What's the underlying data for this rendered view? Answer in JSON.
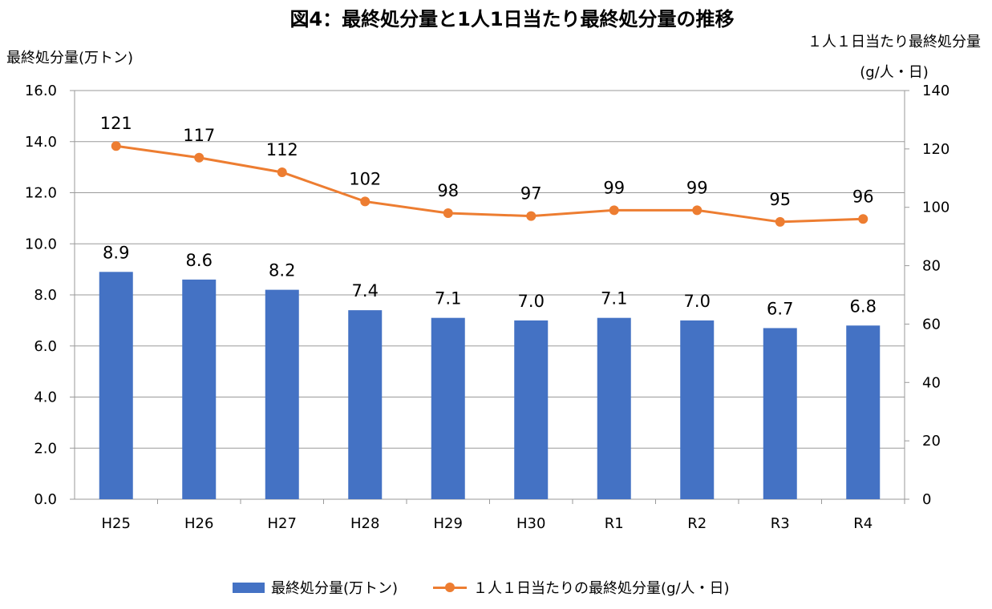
{
  "chart_data": {
    "type": "bar+line",
    "title": "図4：最終処分量と1人1日当たり最終処分量の推移",
    "categories": [
      "H25",
      "H26",
      "H27",
      "H28",
      "H29",
      "H30",
      "R1",
      "R2",
      "R3",
      "R4"
    ],
    "series": [
      {
        "name": "最終処分量(万トン)",
        "type": "bar",
        "axis": "left",
        "color": "#4472C4",
        "values": [
          8.9,
          8.6,
          8.2,
          7.4,
          7.1,
          7.0,
          7.1,
          7.0,
          6.7,
          6.8
        ],
        "labels": [
          "8.9",
          "8.6",
          "8.2",
          "7.4",
          "7.1",
          "7.0",
          "7.1",
          "7.0",
          "6.7",
          "6.8"
        ]
      },
      {
        "name": "１人１日当たりの最終処分量(g/人・日)",
        "type": "line",
        "axis": "right",
        "color": "#ED7D31",
        "values": [
          121,
          117,
          112,
          102,
          98,
          97,
          99,
          99,
          95,
          96
        ],
        "labels": [
          "121",
          "117",
          "112",
          "102",
          "98",
          "97",
          "99",
          "99",
          "95",
          "96"
        ]
      }
    ],
    "ylabel": "最終処分量(万トン)",
    "y2label": "１人１日当たり最終処分量(g/人・日)",
    "ylim": [
      0,
      16
    ],
    "y2lim": [
      0,
      140
    ],
    "yticks": [
      "0.0",
      "2.0",
      "4.0",
      "6.0",
      "8.0",
      "10.0",
      "12.0",
      "14.0",
      "16.0"
    ],
    "y2ticks": [
      "0",
      "20",
      "40",
      "60",
      "80",
      "100",
      "120",
      "140"
    ],
    "grid": true,
    "legend": "bottom"
  }
}
